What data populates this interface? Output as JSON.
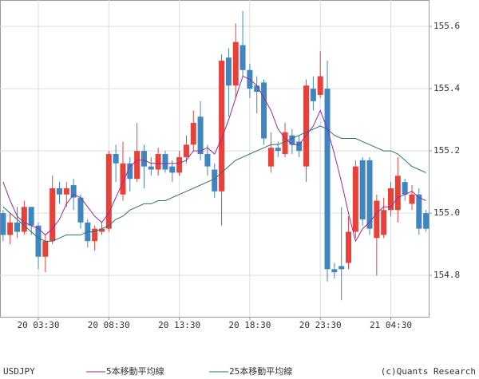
{
  "chart_data": {
    "type": "candlestick",
    "symbol": "USDJPY",
    "source": "(c)Quants Research",
    "categories": [
      null,
      null,
      null,
      null,
      null,
      "20 03:30",
      null,
      null,
      null,
      null,
      null,
      null,
      null,
      null,
      null,
      "20 08:30",
      null,
      null,
      null,
      null,
      null,
      null,
      null,
      null,
      null,
      "20 13:30",
      null,
      null,
      null,
      null,
      null,
      null,
      null,
      null,
      null,
      "20 18:30",
      null,
      null,
      null,
      null,
      null,
      null,
      null,
      null,
      null,
      "20 23:30",
      null,
      null,
      null,
      null,
      null,
      null,
      null,
      null,
      null,
      "21 04:30",
      null,
      null,
      null,
      null,
      null
    ],
    "open": [
      155.0,
      154.93,
      154.97,
      154.94,
      155.02,
      154.96,
      154.86,
      154.91,
      155.08,
      155.06,
      155.09,
      155.05,
      154.97,
      154.91,
      154.94,
      154.95,
      155.19,
      155.06,
      155.16,
      155.11,
      155.2,
      155.15,
      155.14,
      155.19,
      155.15,
      155.13,
      155.18,
      155.22,
      155.31,
      155.19,
      155.14,
      155.07,
      155.5,
      155.41,
      155.54,
      155.46,
      155.41,
      155.42,
      155.15,
      155.21,
      155.19,
      155.25,
      155.23,
      155.15,
      155.4,
      155.38,
      155.4,
      154.82,
      154.83,
      154.84,
      154.94,
      155.17,
      155.17,
      154.92,
      154.93,
      155.01,
      155.01,
      155.1,
      155.03,
      155.06,
      155.0
    ],
    "high": [
      155.01,
      155.0,
      155.02,
      155.04,
      155.02,
      154.97,
      154.93,
      155.12,
      155.1,
      155.1,
      155.11,
      155.06,
      154.98,
      154.96,
      154.97,
      155.2,
      155.22,
      155.23,
      155.18,
      155.29,
      155.22,
      155.18,
      155.21,
      155.2,
      155.17,
      155.2,
      155.25,
      155.33,
      155.36,
      155.22,
      155.16,
      155.51,
      155.53,
      155.61,
      155.65,
      155.48,
      155.44,
      155.43,
      155.26,
      155.23,
      155.29,
      155.27,
      155.25,
      155.43,
      155.44,
      155.52,
      155.49,
      154.84,
      155.02,
      154.99,
      155.17,
      155.18,
      155.18,
      155.06,
      155.05,
      155.1,
      155.18,
      155.11,
      155.09,
      155.08,
      155.01
    ],
    "low": [
      154.91,
      154.9,
      154.92,
      154.93,
      154.93,
      154.82,
      154.81,
      154.9,
      155.03,
      155.02,
      155.01,
      154.95,
      154.89,
      154.88,
      154.93,
      154.94,
      155.1,
      155.04,
      155.07,
      155.1,
      155.08,
      155.12,
      155.12,
      155.13,
      155.1,
      155.12,
      155.16,
      155.2,
      155.17,
      155.12,
      155.05,
      154.96,
      155.31,
      155.37,
      155.44,
      155.37,
      155.32,
      155.22,
      155.13,
      155.18,
      155.18,
      155.19,
      155.18,
      155.1,
      155.33,
      155.37,
      154.78,
      154.79,
      154.72,
      154.82,
      154.92,
      154.96,
      154.93,
      154.8,
      154.92,
      154.99,
      154.97,
      155.04,
      155.01,
      154.93,
      154.94
    ],
    "close": [
      154.93,
      154.97,
      154.94,
      155.02,
      154.96,
      154.86,
      154.91,
      155.08,
      155.06,
      155.08,
      155.05,
      154.97,
      154.91,
      154.95,
      154.95,
      155.19,
      155.16,
      155.16,
      155.11,
      155.2,
      155.15,
      155.14,
      155.19,
      155.14,
      155.13,
      155.18,
      155.22,
      155.29,
      155.19,
      155.15,
      155.07,
      155.49,
      155.41,
      155.55,
      155.46,
      155.4,
      155.39,
      155.24,
      155.21,
      155.2,
      155.26,
      155.22,
      155.2,
      155.41,
      155.36,
      155.44,
      154.82,
      154.81,
      154.82,
      154.94,
      155.15,
      154.98,
      154.95,
      155.04,
      155.01,
      155.08,
      155.12,
      155.06,
      155.06,
      154.95,
      154.95
    ],
    "up_color": "#e8413a",
    "down_color": "#3f86c0",
    "series": [
      {
        "name": "5本移動平均線",
        "color": "#9b27a6",
        "values": [
          155.1,
          155.04,
          154.99,
          154.97,
          154.96,
          154.95,
          154.93,
          154.95,
          154.98,
          155.03,
          155.06,
          155.05,
          155.02,
          154.99,
          154.97,
          155.0,
          155.05,
          155.1,
          155.15,
          155.17,
          155.17,
          155.16,
          155.16,
          155.16,
          155.16,
          155.16,
          155.17,
          155.2,
          155.2,
          155.21,
          155.19,
          155.24,
          155.3,
          155.37,
          155.44,
          155.43,
          155.41,
          155.37,
          155.33,
          155.27,
          155.24,
          155.22,
          155.22,
          155.25,
          155.28,
          155.33,
          155.27,
          155.19,
          155.1,
          155.0,
          154.91,
          154.95,
          154.97,
          155.0,
          155.02,
          155.02,
          155.05,
          155.06,
          155.07,
          155.05,
          155.04
        ]
      },
      {
        "name": "25本移動平均線",
        "color": "#2f7070",
        "values": [
          155.02,
          155.0,
          154.98,
          154.96,
          154.94,
          154.92,
          154.91,
          154.91,
          154.92,
          154.93,
          154.93,
          154.93,
          154.94,
          154.94,
          154.95,
          154.96,
          154.98,
          154.99,
          155.01,
          155.02,
          155.03,
          155.03,
          155.04,
          155.04,
          155.05,
          155.06,
          155.07,
          155.08,
          155.09,
          155.1,
          155.11,
          155.13,
          155.15,
          155.17,
          155.18,
          155.19,
          155.2,
          155.21,
          155.22,
          155.22,
          155.23,
          155.24,
          155.25,
          155.26,
          155.27,
          155.28,
          155.27,
          155.25,
          155.24,
          155.24,
          155.24,
          155.23,
          155.22,
          155.21,
          155.2,
          155.2,
          155.19,
          155.17,
          155.15,
          155.14,
          155.13
        ]
      }
    ],
    "ylim": [
      154.667,
      155.685
    ],
    "yticks": [
      154.8,
      {
        "value": 155,
        "label": "155.0"
      },
      155.2,
      155.4,
      155.6
    ],
    "grid": true
  }
}
